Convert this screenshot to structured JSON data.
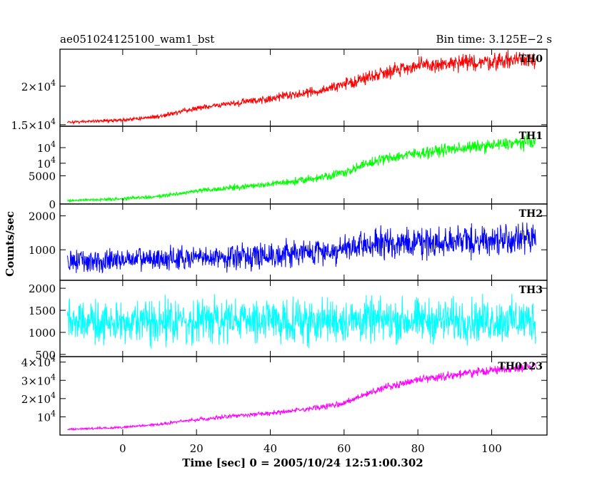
{
  "chart_data": {
    "type": "line",
    "title_left": "ae051024125100_wam1_bst",
    "title_right": "Bin time: 3.125E−2 s",
    "xlabel": "Time [sec] 0 = 2005/10/24 12:51:00.302",
    "ylabel": "Counts/sec",
    "xlim": [
      -17,
      115
    ],
    "x_ticks": [
      0,
      20,
      40,
      60,
      80,
      100
    ],
    "x_start": -15,
    "x_end": 112,
    "grid": false,
    "panels": [
      {
        "name": "TH0",
        "color": "#ff0000",
        "ylim": [
          14800,
          24800
        ],
        "ticks": [
          {
            "value": 15000,
            "mant": "1.5×10",
            "exp": "4"
          },
          {
            "value": 20000,
            "mant": "2×10",
            "exp": "4"
          }
        ],
        "ticks_plain": [
          {
            "value": 10000,
            "mant": "10",
            "exp": "4"
          }
        ],
        "x": [
          -15,
          -10,
          0,
          10,
          20,
          30,
          40,
          50,
          60,
          65,
          70,
          75,
          80,
          90,
          100,
          105,
          112
        ],
        "y": [
          15300,
          15400,
          15600,
          16100,
          17100,
          17800,
          18400,
          19100,
          20200,
          20900,
          21700,
          22300,
          22600,
          22900,
          23200,
          23400,
          23700
        ],
        "noise": [
          250,
          250,
          300,
          350,
          450,
          550,
          650,
          800,
          950,
          1050,
          1150,
          1250,
          1300,
          1350,
          1400,
          1450,
          1500
        ]
      },
      {
        "name": "TH1",
        "color": "#00ff00",
        "ylim": [
          0,
          13800
        ],
        "ticks": [
          {
            "value": 0,
            "mant": "0",
            "exp": ""
          },
          {
            "value": 5000,
            "mant": "5000",
            "exp": ""
          },
          {
            "value": 10000,
            "mant": "10",
            "exp": "4"
          }
        ],
        "ticks_plain": [],
        "x": [
          -15,
          -10,
          0,
          10,
          20,
          30,
          40,
          50,
          60,
          65,
          70,
          75,
          80,
          90,
          100,
          105,
          112
        ],
        "y": [
          600,
          700,
          900,
          1400,
          2300,
          2900,
          3500,
          4300,
          5600,
          6800,
          7900,
          8500,
          9000,
          9800,
          10400,
          10700,
          11100
        ],
        "noise": [
          300,
          320,
          380,
          450,
          550,
          650,
          750,
          850,
          1000,
          1100,
          1200,
          1250,
          1300,
          1350,
          1400,
          1450,
          1500
        ]
      },
      {
        "name": "TH2",
        "color": "#0000ff",
        "ylim": [
          100,
          2350
        ],
        "ticks": [
          {
            "value": 1000,
            "mant": "1000",
            "exp": ""
          },
          {
            "value": 2000,
            "mant": "2000",
            "exp": ""
          }
        ],
        "ticks_plain": [],
        "x": [
          -15,
          0,
          20,
          40,
          60,
          70,
          80,
          90,
          100,
          112
        ],
        "y": [
          650,
          700,
          750,
          850,
          1000,
          1180,
          1200,
          1250,
          1280,
          1320
        ],
        "noise": [
          430,
          440,
          450,
          480,
          520,
          560,
          570,
          580,
          590,
          600
        ]
      },
      {
        "name": "TH3",
        "color": "#00ffff",
        "ylim": [
          450,
          2180
        ],
        "ticks": [
          {
            "value": 500,
            "mant": "500",
            "exp": ""
          },
          {
            "value": 1000,
            "mant": "1000",
            "exp": ""
          },
          {
            "value": 1500,
            "mant": "1500",
            "exp": ""
          },
          {
            "value": 2000,
            "mant": "2000",
            "exp": ""
          }
        ],
        "ticks_plain": [],
        "x": [
          -15,
          112
        ],
        "y": [
          1260,
          1270
        ],
        "noise": [
          620,
          620
        ]
      },
      {
        "name": "TH0123",
        "color": "#ff00ff",
        "ylim": [
          0,
          43000
        ],
        "ticks": [
          {
            "value": 10000,
            "mant": "10",
            "exp": "4"
          },
          {
            "value": 20000,
            "mant": "2×10",
            "exp": "4"
          },
          {
            "value": 30000,
            "mant": "3×10",
            "exp": "4"
          },
          {
            "value": 40000,
            "mant": "4×10",
            "exp": "4"
          }
        ],
        "ticks_plain": [],
        "x": [
          -15,
          -10,
          0,
          10,
          20,
          30,
          40,
          50,
          60,
          65,
          70,
          75,
          80,
          90,
          100,
          105,
          112
        ],
        "y": [
          3200,
          3500,
          4200,
          6000,
          8500,
          10500,
          12000,
          14000,
          17500,
          21500,
          25500,
          28000,
          30500,
          33000,
          35500,
          36500,
          38000
        ],
        "noise": [
          700,
          700,
          800,
          1000,
          1200,
          1400,
          1600,
          1800,
          2100,
          2300,
          2500,
          2600,
          2700,
          2800,
          2900,
          3000,
          3100
        ]
      }
    ]
  }
}
